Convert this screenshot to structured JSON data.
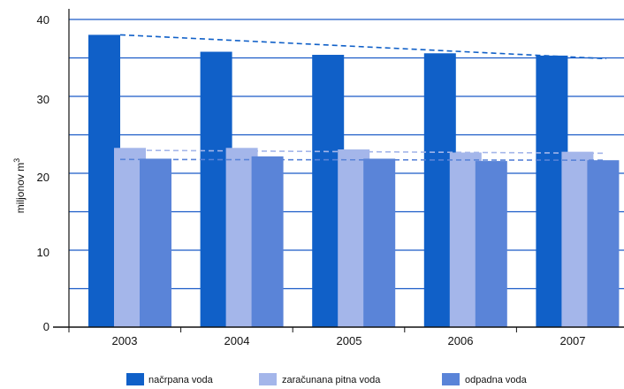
{
  "chart_data": {
    "type": "bar",
    "categories": [
      "2003",
      "2004",
      "2005",
      "2006",
      "2007"
    ],
    "series": [
      {
        "name": "načrpana voda",
        "values": [
          38.0,
          35.8,
          35.4,
          35.6,
          35.3
        ],
        "color": "#1060c8"
      },
      {
        "name": "zaračunana pitna voda",
        "values": [
          23.3,
          23.3,
          23.1,
          22.7,
          22.8
        ],
        "color": "#a4b6ea"
      },
      {
        "name": "odpadna voda",
        "values": [
          21.9,
          22.2,
          21.9,
          21.6,
          21.7
        ],
        "color": "#5a84d8"
      }
    ],
    "trend_lines": [
      {
        "series": "načrpana voda",
        "from": 38.0,
        "to": 34.9
      },
      {
        "series": "zaračunana pitna voda",
        "from": 23.0,
        "to": 22.6
      },
      {
        "series": "odpadna voda",
        "from": 21.8,
        "to": 21.7
      }
    ],
    "ylabel_text": "miljonov m",
    "ylabel_sup": "3",
    "y_ticks": [
      "0",
      "10",
      "20",
      "30",
      "40"
    ],
    "ylim": [
      0,
      40
    ],
    "grid": "horizontal, every 5",
    "grid_color": "#1a5bc7",
    "legend_position": "bottom"
  }
}
